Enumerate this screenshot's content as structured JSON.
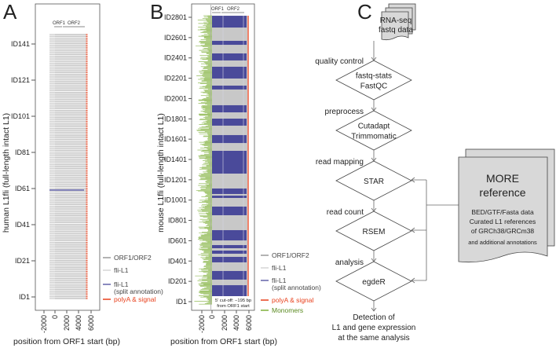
{
  "panels": {
    "a": {
      "label": "A",
      "ylabel": "human L1fli (full-length intact L1)",
      "xlabel": "position from ORF1 start (bp)",
      "yticks": [
        "ID141",
        "ID121",
        "ID101",
        "ID81",
        "ID61",
        "ID41",
        "ID21",
        "ID1"
      ],
      "xticks": [
        "-2000",
        "0",
        "2000",
        "4000",
        "6000"
      ],
      "orf1": "ORF1",
      "orf2": "ORF2",
      "split_annotation_id": 61,
      "legend": {
        "orf": "ORF1/ORF2",
        "fli": "fli-L1",
        "split1": "fli-L1",
        "split2": "(split annotation)",
        "polya": "polyA & signal"
      }
    },
    "b": {
      "label": "B",
      "ylabel": "mouse L1fli (full-length intact L1)",
      "xlabel": "position from ORF1 start (bp)",
      "yticks": [
        "ID2801",
        "ID2601",
        "ID2401",
        "ID2201",
        "ID2001",
        "ID1801",
        "ID1601",
        "ID1401",
        "ID1201",
        "ID1001",
        "ID801",
        "ID601",
        "ID401",
        "ID201",
        "ID1"
      ],
      "xticks": [
        "-2000",
        "0",
        "2000",
        "4000",
        "6000"
      ],
      "orf1": "ORF1",
      "orf2": "ORF2",
      "cutoff_line1": "5' cut-off: −195 bp",
      "cutoff_line2": "from ORF1 start",
      "split_annotation_id_ranges": [
        [
          1,
          163
        ],
        [
          218,
          303
        ],
        [
          388,
          442
        ],
        [
          473,
          504
        ],
        [
          527,
          558
        ],
        [
          604,
          705
        ],
        [
          852,
          937
        ],
        [
          1022,
          1045
        ],
        [
          1061,
          1115
        ],
        [
          1262,
          1486
        ],
        [
          1563,
          1641
        ],
        [
          1734,
          1803
        ],
        [
          1865,
          1935
        ],
        [
          2090,
          2128
        ],
        [
          2198,
          2314
        ],
        [
          2376,
          2445
        ],
        [
          2530,
          2569
        ],
        [
          2700,
          2816
        ]
      ],
      "legend": {
        "orf": "ORF1/ORF2",
        "fli": "fli-L1",
        "split1": "fli-L1",
        "split2": "(split annotation)",
        "polya": "polyA & signal",
        "mono": "Monomers"
      }
    },
    "c": {
      "label": "C",
      "input": [
        "RNA-seq",
        "fastq data"
      ],
      "steps": [
        {
          "stage": "quality control",
          "tool": [
            "fastq-stats",
            "FastQC"
          ]
        },
        {
          "stage": "preprocess",
          "tool": [
            "Cutadapt",
            "Trimmomatic"
          ]
        },
        {
          "stage": "read mapping",
          "tool": [
            "STAR"
          ]
        },
        {
          "stage": "read count",
          "tool": [
            "RSEM"
          ]
        },
        {
          "stage": "analysis",
          "tool": [
            "egdeR"
          ]
        }
      ],
      "output": [
        "Detection of",
        "L1 and gene expression",
        "at the same analysis"
      ],
      "reference": {
        "title1": "MORE",
        "title2": "reference",
        "lines": [
          "BED/GTF/Fasta data",
          "Curated L1 references",
          "of GRCh38/GRCm38",
          "and additional annotations"
        ]
      }
    }
  },
  "colors": {
    "orf": "#8a8a8a",
    "fli": "#cfcfcf",
    "split": "#4a4a9a",
    "polya": "#e8401c",
    "mono": "#7fb03a",
    "doc": "#d8d8d8"
  }
}
